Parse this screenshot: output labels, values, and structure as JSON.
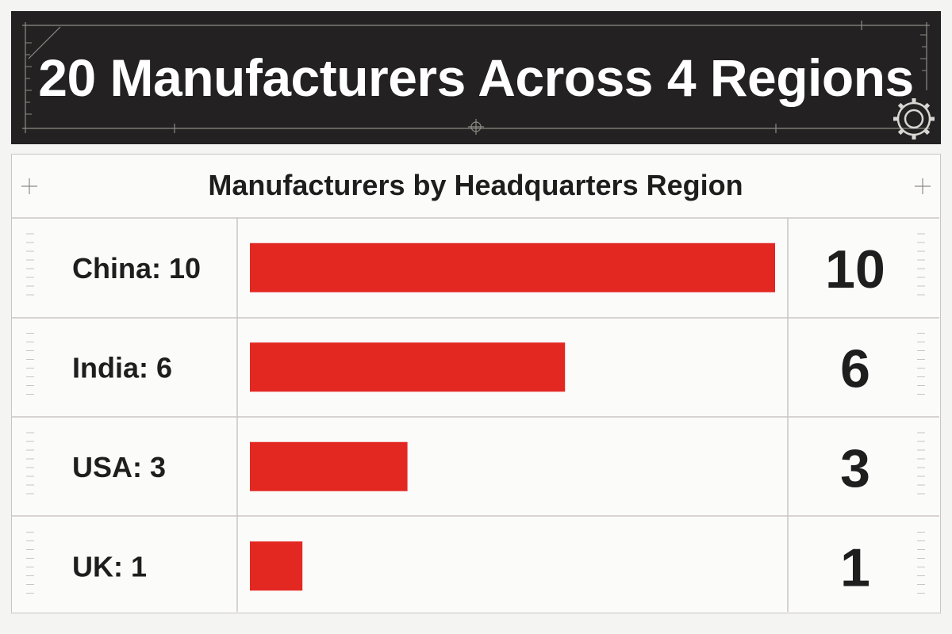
{
  "banner": {
    "title": "20 Manufacturers Across 4 Regions",
    "background": "#232121",
    "icons": [
      "gear-icon",
      "crosshair-icon"
    ]
  },
  "chart_data": {
    "type": "bar",
    "orientation": "horizontal",
    "title": "Manufacturers by Headquarters Region",
    "categories": [
      "China",
      "India",
      "USA",
      "UK"
    ],
    "category_labels": [
      "China: 10",
      "India: 6",
      "USA: 3",
      "UK: 1"
    ],
    "values": [
      10,
      6,
      3,
      1
    ],
    "value_labels": [
      "10",
      "6",
      "3",
      "1"
    ],
    "xlim": [
      0,
      10
    ],
    "bar_color": "#e32822",
    "grid": false,
    "legend": "none"
  }
}
